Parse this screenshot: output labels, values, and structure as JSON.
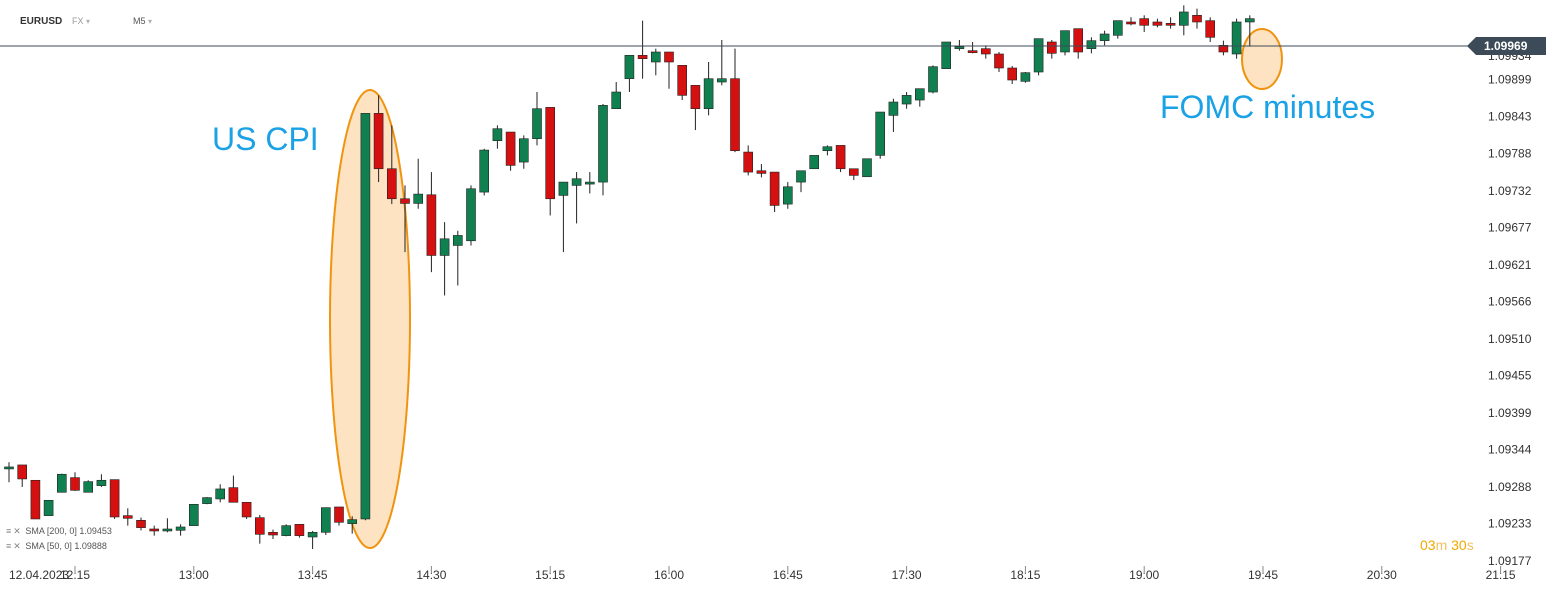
{
  "toolbar": {
    "symbol": "EURUSD",
    "market": "FX",
    "timeframe": "M5",
    "chevron": "▾"
  },
  "current_price": "1.09969",
  "annotations": {
    "cpi": "US CPI",
    "fomc": "FOMC minutes"
  },
  "countdown": {
    "minutes": "03",
    "minutes_unit": "m",
    "seconds": "30",
    "seconds_unit": "s"
  },
  "indicators": [
    {
      "icon": "list-icon",
      "close": "✕",
      "label": "SMA  [200,  0]",
      "value": "1.09453"
    },
    {
      "icon": "list-icon",
      "close": "✕",
      "label": "SMA  [50,  0]",
      "value": "1.09888"
    }
  ],
  "colors": {
    "up": "#118050",
    "down": "#d41010",
    "highlight_fill": "#fde3c2",
    "highlight_stroke": "#f0940f",
    "annot": "#1aa1e6"
  },
  "chart_data": {
    "type": "candlestick",
    "title": "EURUSD M5",
    "date_label": "12.04.2023",
    "x_ticks": [
      "12:15",
      "13:00",
      "13:45",
      "14:30",
      "15:15",
      "16:00",
      "16:45",
      "17:30",
      "18:15",
      "19:00",
      "19:45",
      "20:30",
      "21:15"
    ],
    "y_ticks": [
      "1.09934",
      "1.09899",
      "1.09843",
      "1.09788",
      "1.09732",
      "1.09677",
      "1.09621",
      "1.09566",
      "1.09510",
      "1.09455",
      "1.09399",
      "1.09344",
      "1.09288",
      "1.09233",
      "1.09177"
    ],
    "ylim": [
      1.09177,
      1.09969
    ],
    "candles": [
      {
        "t": "11:50",
        "o": 1.09318,
        "h": 1.09325,
        "l": 1.09295,
        "c": 1.09318
      },
      {
        "t": "11:55",
        "o": 1.09321,
        "h": 1.09321,
        "l": 1.09288,
        "c": 1.093
      },
      {
        "t": "12:00",
        "o": 1.09298,
        "h": 1.09298,
        "l": 1.0924,
        "c": 1.0924
      },
      {
        "t": "12:05",
        "o": 1.09245,
        "h": 1.09268,
        "l": 1.09245,
        "c": 1.09268
      },
      {
        "t": "12:10",
        "o": 1.0928,
        "h": 1.09308,
        "l": 1.0928,
        "c": 1.09307
      },
      {
        "t": "12:15",
        "o": 1.09302,
        "h": 1.0931,
        "l": 1.09282,
        "c": 1.09283
      },
      {
        "t": "12:20",
        "o": 1.0928,
        "h": 1.09298,
        "l": 1.0928,
        "c": 1.09296
      },
      {
        "t": "12:25",
        "o": 1.0929,
        "h": 1.09307,
        "l": 1.09288,
        "c": 1.09298
      },
      {
        "t": "12:30",
        "o": 1.09299,
        "h": 1.09299,
        "l": 1.0924,
        "c": 1.09243
      },
      {
        "t": "12:35",
        "o": 1.09245,
        "h": 1.09256,
        "l": 1.0923,
        "c": 1.09241
      },
      {
        "t": "12:40",
        "o": 1.09238,
        "h": 1.09242,
        "l": 1.09223,
        "c": 1.09227
      },
      {
        "t": "12:45",
        "o": 1.09225,
        "h": 1.0923,
        "l": 1.09215,
        "c": 1.09222
      },
      {
        "t": "12:50",
        "o": 1.09223,
        "h": 1.09241,
        "l": 1.0922,
        "c": 1.09225
      },
      {
        "t": "12:55",
        "o": 1.09223,
        "h": 1.09232,
        "l": 1.09215,
        "c": 1.09228
      },
      {
        "t": "13:00",
        "o": 1.0923,
        "h": 1.09262,
        "l": 1.0923,
        "c": 1.09262
      },
      {
        "t": "13:05",
        "o": 1.09263,
        "h": 1.09273,
        "l": 1.09262,
        "c": 1.09272
      },
      {
        "t": "13:10",
        "o": 1.0927,
        "h": 1.09292,
        "l": 1.09265,
        "c": 1.09285
      },
      {
        "t": "13:15",
        "o": 1.09287,
        "h": 1.09305,
        "l": 1.09265,
        "c": 1.09265
      },
      {
        "t": "13:20",
        "o": 1.09265,
        "h": 1.09265,
        "l": 1.0924,
        "c": 1.09243
      },
      {
        "t": "13:25",
        "o": 1.09242,
        "h": 1.09246,
        "l": 1.09203,
        "c": 1.09217
      },
      {
        "t": "13:30",
        "o": 1.0922,
        "h": 1.09224,
        "l": 1.0921,
        "c": 1.09216
      },
      {
        "t": "13:35",
        "o": 1.09215,
        "h": 1.09232,
        "l": 1.09214,
        "c": 1.0923
      },
      {
        "t": "13:40",
        "o": 1.09232,
        "h": 1.09232,
        "l": 1.09212,
        "c": 1.09215
      },
      {
        "t": "13:45",
        "o": 1.09213,
        "h": 1.09222,
        "l": 1.09195,
        "c": 1.0922
      },
      {
        "t": "13:50",
        "o": 1.0922,
        "h": 1.09257,
        "l": 1.09216,
        "c": 1.09257
      },
      {
        "t": "13:55",
        "o": 1.09258,
        "h": 1.09258,
        "l": 1.0923,
        "c": 1.09235
      },
      {
        "t": "14:00",
        "o": 1.09233,
        "h": 1.09244,
        "l": 1.09218,
        "c": 1.09239
      },
      {
        "t": "14:05",
        "o": 1.0924,
        "h": 1.09848,
        "l": 1.09238,
        "c": 1.09848
      },
      {
        "t": "14:10",
        "o": 1.09848,
        "h": 1.09875,
        "l": 1.09745,
        "c": 1.09765
      },
      {
        "t": "14:15",
        "o": 1.09765,
        "h": 1.0983,
        "l": 1.09712,
        "c": 1.0972
      },
      {
        "t": "14:20",
        "o": 1.0972,
        "h": 1.0974,
        "l": 1.0964,
        "c": 1.09713
      },
      {
        "t": "14:25",
        "o": 1.09713,
        "h": 1.0978,
        "l": 1.09705,
        "c": 1.09727
      },
      {
        "t": "14:30",
        "o": 1.09726,
        "h": 1.0976,
        "l": 1.0961,
        "c": 1.09635
      },
      {
        "t": "14:35",
        "o": 1.09635,
        "h": 1.09685,
        "l": 1.09575,
        "c": 1.0966
      },
      {
        "t": "14:40",
        "o": 1.0965,
        "h": 1.09672,
        "l": 1.0959,
        "c": 1.09665
      },
      {
        "t": "14:45",
        "o": 1.09657,
        "h": 1.0974,
        "l": 1.0965,
        "c": 1.09735
      },
      {
        "t": "14:50",
        "o": 1.0973,
        "h": 1.09795,
        "l": 1.09725,
        "c": 1.09793
      },
      {
        "t": "14:55",
        "o": 1.09807,
        "h": 1.0983,
        "l": 1.09795,
        "c": 1.09825
      },
      {
        "t": "15:00",
        "o": 1.0982,
        "h": 1.0982,
        "l": 1.09762,
        "c": 1.0977
      },
      {
        "t": "15:05",
        "o": 1.09775,
        "h": 1.09815,
        "l": 1.09765,
        "c": 1.0981
      },
      {
        "t": "15:10",
        "o": 1.0981,
        "h": 1.0988,
        "l": 1.098,
        "c": 1.09855
      },
      {
        "t": "15:15",
        "o": 1.09857,
        "h": 1.09857,
        "l": 1.09695,
        "c": 1.0972
      },
      {
        "t": "15:20",
        "o": 1.09725,
        "h": 1.0974,
        "l": 1.0964,
        "c": 1.09745
      },
      {
        "t": "15:25",
        "o": 1.0974,
        "h": 1.0976,
        "l": 1.09683,
        "c": 1.0975
      },
      {
        "t": "15:30",
        "o": 1.09745,
        "h": 1.0976,
        "l": 1.09728,
        "c": 1.09745
      },
      {
        "t": "15:35",
        "o": 1.09745,
        "h": 1.09862,
        "l": 1.09725,
        "c": 1.0986
      },
      {
        "t": "15:40",
        "o": 1.09855,
        "h": 1.09895,
        "l": 1.09855,
        "c": 1.0988
      },
      {
        "t": "15:45",
        "o": 1.099,
        "h": 1.09935,
        "l": 1.0988,
        "c": 1.09935
      },
      {
        "t": "15:50",
        "o": 1.09935,
        "h": 1.09987,
        "l": 1.099,
        "c": 1.0993
      },
      {
        "t": "15:55",
        "o": 1.09925,
        "h": 1.09945,
        "l": 1.09905,
        "c": 1.0994
      },
      {
        "t": "16:00",
        "o": 1.0994,
        "h": 1.0994,
        "l": 1.09885,
        "c": 1.09925
      },
      {
        "t": "16:05",
        "o": 1.0992,
        "h": 1.0992,
        "l": 1.09868,
        "c": 1.09875
      },
      {
        "t": "16:10",
        "o": 1.0989,
        "h": 1.0989,
        "l": 1.09823,
        "c": 1.09855
      },
      {
        "t": "16:15",
        "o": 1.09855,
        "h": 1.09925,
        "l": 1.09845,
        "c": 1.099
      },
      {
        "t": "16:20",
        "o": 1.09895,
        "h": 1.09958,
        "l": 1.0989,
        "c": 1.099
      },
      {
        "t": "16:25",
        "o": 1.099,
        "h": 1.09945,
        "l": 1.0979,
        "c": 1.09792
      },
      {
        "t": "16:30",
        "o": 1.0979,
        "h": 1.098,
        "l": 1.09755,
        "c": 1.0976
      },
      {
        "t": "16:35",
        "o": 1.09762,
        "h": 1.09772,
        "l": 1.09752,
        "c": 1.09758
      },
      {
        "t": "16:40",
        "o": 1.0976,
        "h": 1.0976,
        "l": 1.097,
        "c": 1.0971
      },
      {
        "t": "16:45",
        "o": 1.09712,
        "h": 1.09745,
        "l": 1.09705,
        "c": 1.09738
      },
      {
        "t": "16:50",
        "o": 1.09745,
        "h": 1.09762,
        "l": 1.0973,
        "c": 1.09762
      },
      {
        "t": "16:55",
        "o": 1.09765,
        "h": 1.09785,
        "l": 1.09765,
        "c": 1.09785
      },
      {
        "t": "17:00",
        "o": 1.09792,
        "h": 1.098,
        "l": 1.09785,
        "c": 1.09798
      },
      {
        "t": "17:05",
        "o": 1.098,
        "h": 1.098,
        "l": 1.0976,
        "c": 1.09765
      },
      {
        "t": "17:10",
        "o": 1.09765,
        "h": 1.09765,
        "l": 1.09748,
        "c": 1.09755
      },
      {
        "t": "17:15",
        "o": 1.09753,
        "h": 1.0978,
        "l": 1.09753,
        "c": 1.0978
      },
      {
        "t": "17:20",
        "o": 1.09785,
        "h": 1.0985,
        "l": 1.0978,
        "c": 1.0985
      },
      {
        "t": "17:25",
        "o": 1.09845,
        "h": 1.0987,
        "l": 1.0982,
        "c": 1.09865
      },
      {
        "t": "17:30",
        "o": 1.09862,
        "h": 1.0988,
        "l": 1.09855,
        "c": 1.09875
      },
      {
        "t": "17:35",
        "o": 1.09868,
        "h": 1.09885,
        "l": 1.09858,
        "c": 1.09885
      },
      {
        "t": "17:40",
        "o": 1.0988,
        "h": 1.0992,
        "l": 1.09878,
        "c": 1.09918
      },
      {
        "t": "17:45",
        "o": 1.09915,
        "h": 1.09955,
        "l": 1.09915,
        "c": 1.09955
      },
      {
        "t": "17:50",
        "o": 1.09948,
        "h": 1.09958,
        "l": 1.09942,
        "c": 1.09948
      },
      {
        "t": "17:55",
        "o": 1.09942,
        "h": 1.09955,
        "l": 1.09938,
        "c": 1.0994
      },
      {
        "t": "18:00",
        "o": 1.09945,
        "h": 1.0995,
        "l": 1.0993,
        "c": 1.09937
      },
      {
        "t": "18:05",
        "o": 1.09937,
        "h": 1.0994,
        "l": 1.0991,
        "c": 1.09916
      },
      {
        "t": "18:10",
        "o": 1.09916,
        "h": 1.09919,
        "l": 1.09892,
        "c": 1.09898
      },
      {
        "t": "18:15",
        "o": 1.09896,
        "h": 1.0991,
        "l": 1.09894,
        "c": 1.09909
      },
      {
        "t": "18:20",
        "o": 1.0991,
        "h": 1.0996,
        "l": 1.09905,
        "c": 1.0996
      },
      {
        "t": "18:25",
        "o": 1.09955,
        "h": 1.09958,
        "l": 1.0993,
        "c": 1.09938
      },
      {
        "t": "18:30",
        "o": 1.0994,
        "h": 1.09972,
        "l": 1.09935,
        "c": 1.09972
      },
      {
        "t": "18:35",
        "o": 1.09975,
        "h": 1.09975,
        "l": 1.0993,
        "c": 1.0994
      },
      {
        "t": "18:40",
        "o": 1.09945,
        "h": 1.09962,
        "l": 1.09938,
        "c": 1.09957
      },
      {
        "t": "18:45",
        "o": 1.09957,
        "h": 1.09972,
        "l": 1.0995,
        "c": 1.09967
      },
      {
        "t": "18:50",
        "o": 1.09965,
        "h": 1.09987,
        "l": 1.0996,
        "c": 1.09987
      },
      {
        "t": "18:55",
        "o": 1.09985,
        "h": 1.09992,
        "l": 1.0998,
        "c": 1.09982
      },
      {
        "t": "19:00",
        "o": 1.0999,
        "h": 1.09995,
        "l": 1.0997,
        "c": 1.0998
      },
      {
        "t": "19:05",
        "o": 1.09985,
        "h": 1.0999,
        "l": 1.09977,
        "c": 1.0998
      },
      {
        "t": "19:10",
        "o": 1.09983,
        "h": 1.09992,
        "l": 1.09975,
        "c": 1.0998
      },
      {
        "t": "19:15",
        "o": 1.0998,
        "h": 1.1001,
        "l": 1.09965,
        "c": 1.1
      },
      {
        "t": "19:20",
        "o": 1.09995,
        "h": 1.10005,
        "l": 1.09975,
        "c": 1.09985
      },
      {
        "t": "19:25",
        "o": 1.09987,
        "h": 1.09992,
        "l": 1.09955,
        "c": 1.09962
      },
      {
        "t": "19:30",
        "o": 1.0995,
        "h": 1.09957,
        "l": 1.09935,
        "c": 1.0994
      },
      {
        "t": "19:35",
        "o": 1.09937,
        "h": 1.0999,
        "l": 1.0993,
        "c": 1.09985
      },
      {
        "t": "19:40",
        "o": 1.09985,
        "h": 1.09995,
        "l": 1.09948,
        "c": 1.0999
      }
    ]
  }
}
